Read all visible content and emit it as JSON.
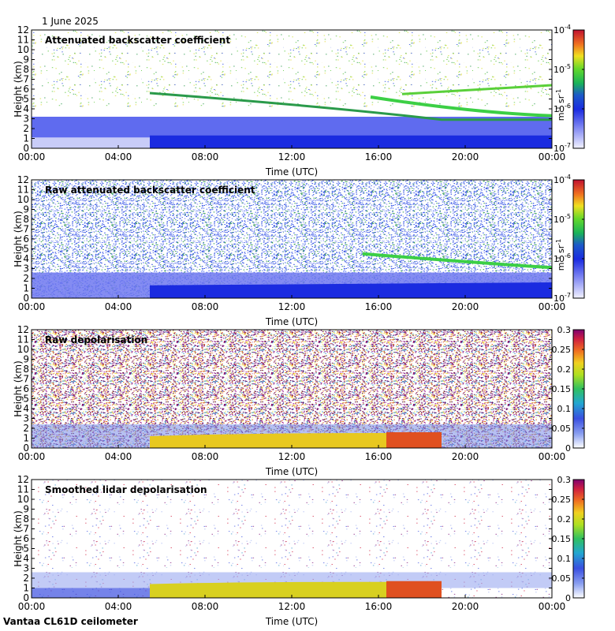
{
  "header": {
    "date": "1 June 2025"
  },
  "footer": {
    "instrument": "Vantaa CL61D ceilometer"
  },
  "chart_data": [
    {
      "type": "heatmap",
      "title": "Attenuated backscatter coefficient",
      "xlabel": "Time (UTC)",
      "ylabel": "Height (km)",
      "xticks": [
        "00:00",
        "04:00",
        "08:00",
        "12:00",
        "16:00",
        "20:00",
        "00:00"
      ],
      "yticks": [
        "0",
        "1",
        "2",
        "3",
        "4",
        "5",
        "6",
        "7",
        "8",
        "9",
        "10",
        "11",
        "12"
      ],
      "ylim": [
        0,
        12
      ],
      "colorbar": {
        "scale": "log",
        "ticks": [
          "10",
          "10",
          "10",
          "10"
        ],
        "exponents": [
          "-7",
          "-6",
          "-5",
          "-4"
        ],
        "unit": "m",
        "unit_exp1": "-1",
        "unit2": "sr",
        "unit_exp2": "-1"
      }
    },
    {
      "type": "heatmap",
      "title": "Raw attenuated backscatter coefficient",
      "xlabel": "Time (UTC)",
      "ylabel": "Height (km)",
      "xticks": [
        "00:00",
        "04:00",
        "08:00",
        "12:00",
        "16:00",
        "20:00",
        "00:00"
      ],
      "yticks": [
        "0",
        "1",
        "2",
        "3",
        "4",
        "5",
        "6",
        "7",
        "8",
        "9",
        "10",
        "11",
        "12"
      ],
      "ylim": [
        0,
        12
      ],
      "colorbar": {
        "scale": "log",
        "ticks": [
          "10",
          "10",
          "10",
          "10"
        ],
        "exponents": [
          "-7",
          "-6",
          "-5",
          "-4"
        ],
        "unit": "m",
        "unit_exp1": "-1",
        "unit2": "sr",
        "unit_exp2": "-1"
      }
    },
    {
      "type": "heatmap",
      "title": "Raw depolarisation",
      "xlabel": "Time (UTC)",
      "ylabel": "Height (km)",
      "xticks": [
        "00:00",
        "04:00",
        "08:00",
        "12:00",
        "16:00",
        "20:00",
        "00:00"
      ],
      "yticks": [
        "0",
        "1",
        "2",
        "3",
        "4",
        "5",
        "6",
        "7",
        "8",
        "9",
        "10",
        "11",
        "12"
      ],
      "ylim": [
        0,
        12
      ],
      "colorbar": {
        "scale": "linear",
        "ticks": [
          "0",
          "0.05",
          "0.1",
          "0.15",
          "0.2",
          "0.25",
          "0.3"
        ]
      }
    },
    {
      "type": "heatmap",
      "title": "Smoothed lidar depolarisation",
      "xlabel": "Time (UTC)",
      "ylabel": "Height (km)",
      "xticks": [
        "00:00",
        "04:00",
        "08:00",
        "12:00",
        "16:00",
        "20:00",
        "00:00"
      ],
      "yticks": [
        "0",
        "1",
        "2",
        "3",
        "4",
        "5",
        "6",
        "7",
        "8",
        "9",
        "10",
        "11",
        "12"
      ],
      "ylim": [
        0,
        12
      ],
      "colorbar": {
        "scale": "linear",
        "ticks": [
          "0",
          "0.05",
          "0.1",
          "0.15",
          "0.2",
          "0.25",
          "0.3"
        ]
      }
    }
  ]
}
